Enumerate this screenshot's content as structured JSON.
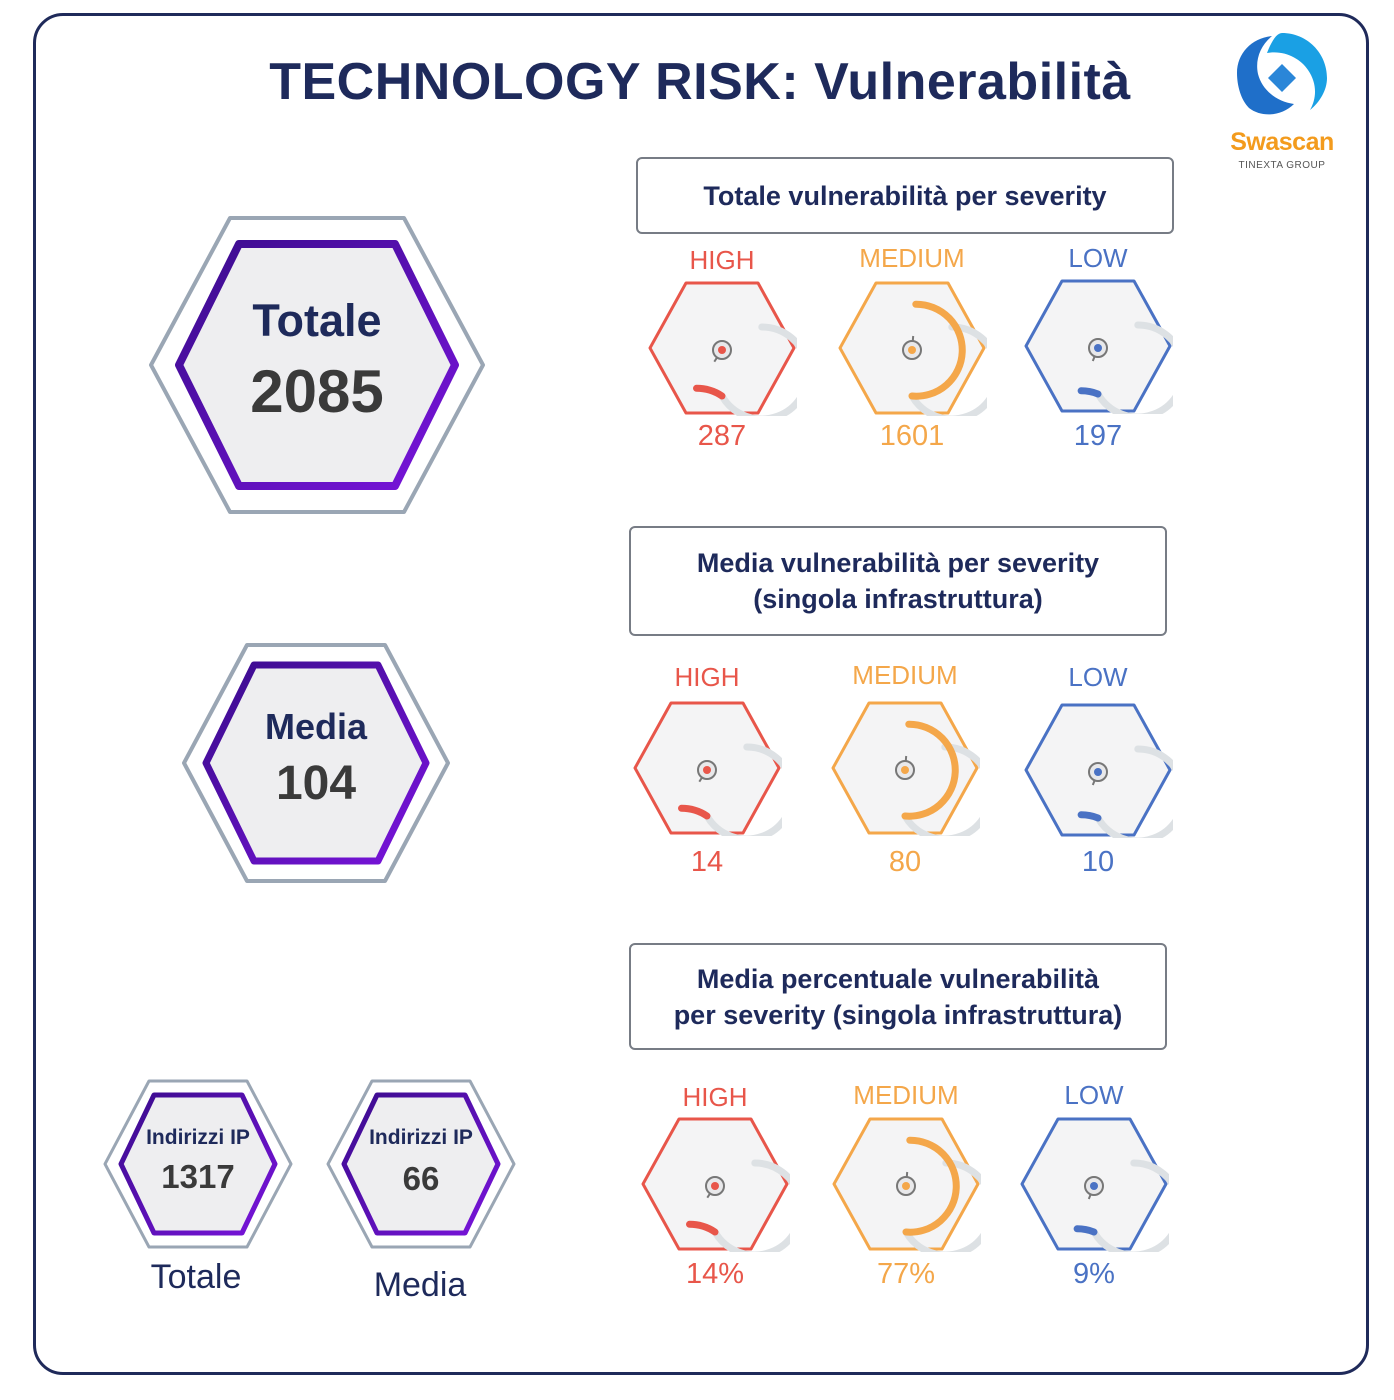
{
  "title": "TECHNOLOGY RISK: Vulnerabilità",
  "logo": {
    "name": "Swascan",
    "subtitle": "TINEXTA GROUP",
    "icon": "swascan-logo-icon"
  },
  "colors": {
    "high": "#e8564a",
    "medium": "#f4a74a",
    "low": "#4a72c4",
    "navy": "#1e2a5b",
    "purple": "#6a12c8",
    "hex_outer": "#9aa6b4",
    "track": "#dde1e4"
  },
  "left": {
    "totale": {
      "label": "Totale",
      "value": "2085"
    },
    "media": {
      "label": "Media",
      "value": "104"
    },
    "ip_totale": {
      "label": "Indirizzi IP",
      "value": "1317",
      "caption": "Totale"
    },
    "ip_media": {
      "label": "Indirizzi IP",
      "value": "66",
      "caption": "Media"
    }
  },
  "sections": [
    {
      "header": "Totale vulnerabilità per severity",
      "items": [
        {
          "label": "HIGH",
          "value": "287",
          "level": 0.14
        },
        {
          "label": "MEDIUM",
          "value": "1601",
          "level": 0.77
        },
        {
          "label": "LOW",
          "value": "197",
          "level": 0.09
        }
      ]
    },
    {
      "header_line1": "Media vulnerabilità per severity",
      "header_line2": "(singola infrastruttura)",
      "items": [
        {
          "label": "HIGH",
          "value": "14",
          "level": 0.14
        },
        {
          "label": "MEDIUM",
          "value": "80",
          "level": 0.77
        },
        {
          "label": "LOW",
          "value": "10",
          "level": 0.09
        }
      ]
    },
    {
      "header_line1": "Media percentuale vulnerabilità",
      "header_line2": "per severity (singola infrastruttura)",
      "items": [
        {
          "label": "HIGH",
          "value": "14%",
          "level": 0.14
        },
        {
          "label": "MEDIUM",
          "value": "77%",
          "level": 0.77
        },
        {
          "label": "LOW",
          "value": "9%",
          "level": 0.09
        }
      ]
    }
  ]
}
